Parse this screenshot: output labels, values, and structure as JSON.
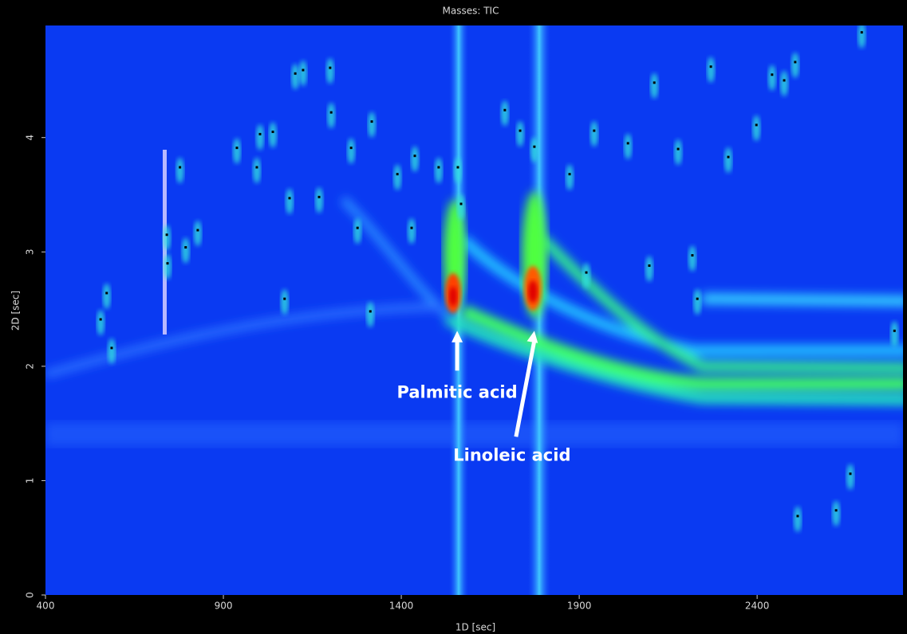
{
  "chart_data": {
    "type": "scatter",
    "title": "Masses: TIC",
    "x_label": "1D [sec]",
    "y_label": "2D [sec]",
    "xlim": [
      400,
      2810
    ],
    "ylim": [
      0,
      4.98
    ],
    "xticks": [
      400,
      900,
      1400,
      1900,
      2400
    ],
    "yticks": [
      0,
      1,
      2,
      3,
      4
    ],
    "color": "#000000",
    "x": [
      555,
      572,
      586,
      741,
      743,
      778,
      794,
      828,
      938,
      994,
      1003,
      1039,
      1072,
      1086,
      1102,
      1124,
      1169,
      1200,
      1203,
      1259,
      1277,
      1313,
      1317,
      1389,
      1429,
      1438,
      1505,
      1559,
      1568,
      1691,
      1734,
      1774,
      1873,
      1920,
      1942,
      2037,
      2097,
      2111,
      2178,
      2218,
      2232,
      2270,
      2319,
      2398,
      2442,
      2476,
      2507,
      2514,
      2622,
      2662,
      2694,
      2786
    ],
    "y": [
      2.41,
      2.64,
      2.16,
      3.15,
      2.9,
      3.74,
      3.04,
      3.19,
      3.91,
      3.74,
      4.03,
      4.05,
      2.59,
      3.47,
      4.56,
      4.59,
      3.48,
      4.61,
      4.22,
      3.91,
      3.21,
      2.48,
      4.14,
      3.68,
      3.21,
      3.84,
      3.74,
      3.74,
      3.42,
      4.24,
      4.06,
      3.92,
      3.68,
      2.82,
      4.06,
      3.95,
      2.88,
      4.48,
      3.9,
      2.97,
      2.59,
      4.62,
      3.83,
      4.11,
      4.55,
      4.5,
      4.66,
      0.69,
      0.74,
      1.06,
      4.92,
      2.31
    ],
    "annotations": [
      {
        "text": "Palmitic acid",
        "x": 1557,
        "y": 2.31
      },
      {
        "text": "Linoleic acid",
        "x": 1774,
        "y": 2.31
      }
    ]
  }
}
